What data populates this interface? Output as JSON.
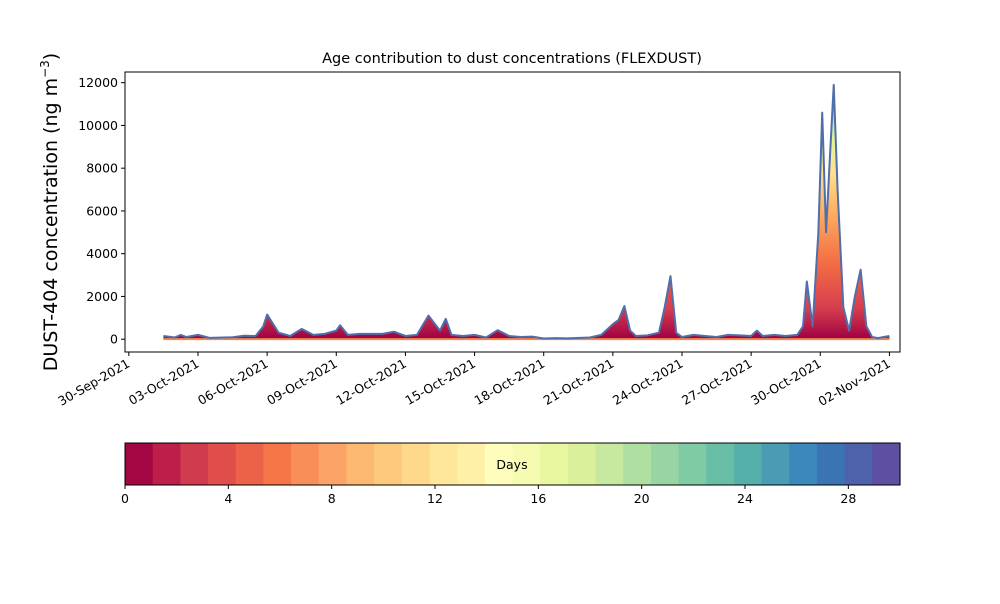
{
  "chart_data": {
    "type": "area",
    "title": "Age contribution to dust concentrations (FLEXDUST)",
    "ylabel_main": "DUST-404 concentration (ng m",
    "ylabel_sup": "−3",
    "ylabel_close": ")",
    "xlabel": "",
    "x_ticks": [
      "30-Sep-2021",
      "03-Oct-2021",
      "06-Oct-2021",
      "09-Oct-2021",
      "12-Oct-2021",
      "15-Oct-2021",
      "18-Oct-2021",
      "21-Oct-2021",
      "24-Oct-2021",
      "27-Oct-2021",
      "30-Oct-2021",
      "02-Nov-2021"
    ],
    "y_ticks": [
      "0",
      "2000",
      "4000",
      "6000",
      "8000",
      "10000",
      "12000"
    ],
    "xlim": [
      "2021-09-29T20:00",
      "2021-11-02T11:00"
    ],
    "ylim": [
      -600,
      12500
    ],
    "total": {
      "name": "",
      "color": "#4f6eab",
      "points": [
        [
          "2021-10-01T12:00",
          150
        ],
        [
          "2021-10-02T00:00",
          80
        ],
        [
          "2021-10-02T06:00",
          200
        ],
        [
          "2021-10-02T12:00",
          100
        ],
        [
          "2021-10-03T00:00",
          200
        ],
        [
          "2021-10-03T12:00",
          60
        ],
        [
          "2021-10-04T12:00",
          90
        ],
        [
          "2021-10-05T00:00",
          160
        ],
        [
          "2021-10-05T12:00",
          150
        ],
        [
          "2021-10-05T20:00",
          600
        ],
        [
          "2021-10-06T00:00",
          1150
        ],
        [
          "2021-10-06T12:00",
          300
        ],
        [
          "2021-10-07T00:00",
          150
        ],
        [
          "2021-10-07T12:00",
          480
        ],
        [
          "2021-10-08T00:00",
          200
        ],
        [
          "2021-10-08T12:00",
          250
        ],
        [
          "2021-10-09T00:00",
          400
        ],
        [
          "2021-10-09T04:00",
          650
        ],
        [
          "2021-10-09T12:00",
          200
        ],
        [
          "2021-10-10T00:00",
          250
        ],
        [
          "2021-10-11T00:00",
          250
        ],
        [
          "2021-10-11T12:00",
          350
        ],
        [
          "2021-10-12T00:00",
          150
        ],
        [
          "2021-10-12T12:00",
          200
        ],
        [
          "2021-10-13T00:00",
          1100
        ],
        [
          "2021-10-13T12:00",
          400
        ],
        [
          "2021-10-13T18:00",
          950
        ],
        [
          "2021-10-14T00:00",
          200
        ],
        [
          "2021-10-14T12:00",
          150
        ],
        [
          "2021-10-15T00:00",
          200
        ],
        [
          "2021-10-15T12:00",
          80
        ],
        [
          "2021-10-16T00:00",
          420
        ],
        [
          "2021-10-16T12:00",
          150
        ],
        [
          "2021-10-17T00:00",
          100
        ],
        [
          "2021-10-17T12:00",
          120
        ],
        [
          "2021-10-18T00:00",
          30
        ],
        [
          "2021-10-18T12:00",
          50
        ],
        [
          "2021-10-19T00:00",
          40
        ],
        [
          "2021-10-20T00:00",
          80
        ],
        [
          "2021-10-20T12:00",
          200
        ],
        [
          "2021-10-21T00:00",
          700
        ],
        [
          "2021-10-21T06:00",
          900
        ],
        [
          "2021-10-21T12:00",
          1550
        ],
        [
          "2021-10-21T18:00",
          400
        ],
        [
          "2021-10-22T00:00",
          150
        ],
        [
          "2021-10-22T12:00",
          180
        ],
        [
          "2021-10-23T00:00",
          300
        ],
        [
          "2021-10-23T06:00",
          1500
        ],
        [
          "2021-10-23T12:00",
          2950
        ],
        [
          "2021-10-23T18:00",
          300
        ],
        [
          "2021-10-24T00:00",
          100
        ],
        [
          "2021-10-24T12:00",
          200
        ],
        [
          "2021-10-25T00:00",
          150
        ],
        [
          "2021-10-25T12:00",
          100
        ],
        [
          "2021-10-26T00:00",
          200
        ],
        [
          "2021-10-26T12:00",
          180
        ],
        [
          "2021-10-27T00:00",
          150
        ],
        [
          "2021-10-27T06:00",
          400
        ],
        [
          "2021-10-27T12:00",
          150
        ],
        [
          "2021-10-28T00:00",
          200
        ],
        [
          "2021-10-28T12:00",
          150
        ],
        [
          "2021-10-29T00:00",
          200
        ],
        [
          "2021-10-29T06:00",
          600
        ],
        [
          "2021-10-29T10:00",
          2700
        ],
        [
          "2021-10-29T16:00",
          600
        ],
        [
          "2021-10-29T22:00",
          5000
        ],
        [
          "2021-10-30T02:00",
          10600
        ],
        [
          "2021-10-30T06:00",
          5000
        ],
        [
          "2021-10-30T10:00",
          8500
        ],
        [
          "2021-10-30T14:00",
          11900
        ],
        [
          "2021-10-30T18:00",
          7000
        ],
        [
          "2021-10-31T00:00",
          1500
        ],
        [
          "2021-10-31T06:00",
          400
        ],
        [
          "2021-10-31T12:00",
          2000
        ],
        [
          "2021-10-31T18:00",
          3250
        ],
        [
          "2021-11-01T00:00",
          600
        ],
        [
          "2021-11-01T06:00",
          100
        ],
        [
          "2021-11-01T12:00",
          50
        ],
        [
          "2021-11-01T18:00",
          100
        ],
        [
          "2021-11-02T00:00",
          150
        ]
      ]
    },
    "colorbar": {
      "label": "Days",
      "min": 0,
      "max": 30,
      "ticks": [
        "0",
        "4",
        "8",
        "12",
        "16",
        "20",
        "24",
        "28"
      ],
      "colors": [
        "#a30643",
        "#be1e4a",
        "#d03c4e",
        "#e04e4b",
        "#ec6248",
        "#f57748",
        "#f98f58",
        "#fca467",
        "#fdb96f",
        "#fdc97c",
        "#fed98b",
        "#fee79b",
        "#fff0a8",
        "#fffdbc",
        "#f6fbb2",
        "#eaf7a1",
        "#dbf09b",
        "#c6e89f",
        "#b0dfa2",
        "#98d4a4",
        "#7fcba4",
        "#69bfa5",
        "#56b0aa",
        "#4a9bb4",
        "#3b88bd",
        "#3a74b3",
        "#4e62ab",
        "#5e4fa2"
      ]
    }
  }
}
